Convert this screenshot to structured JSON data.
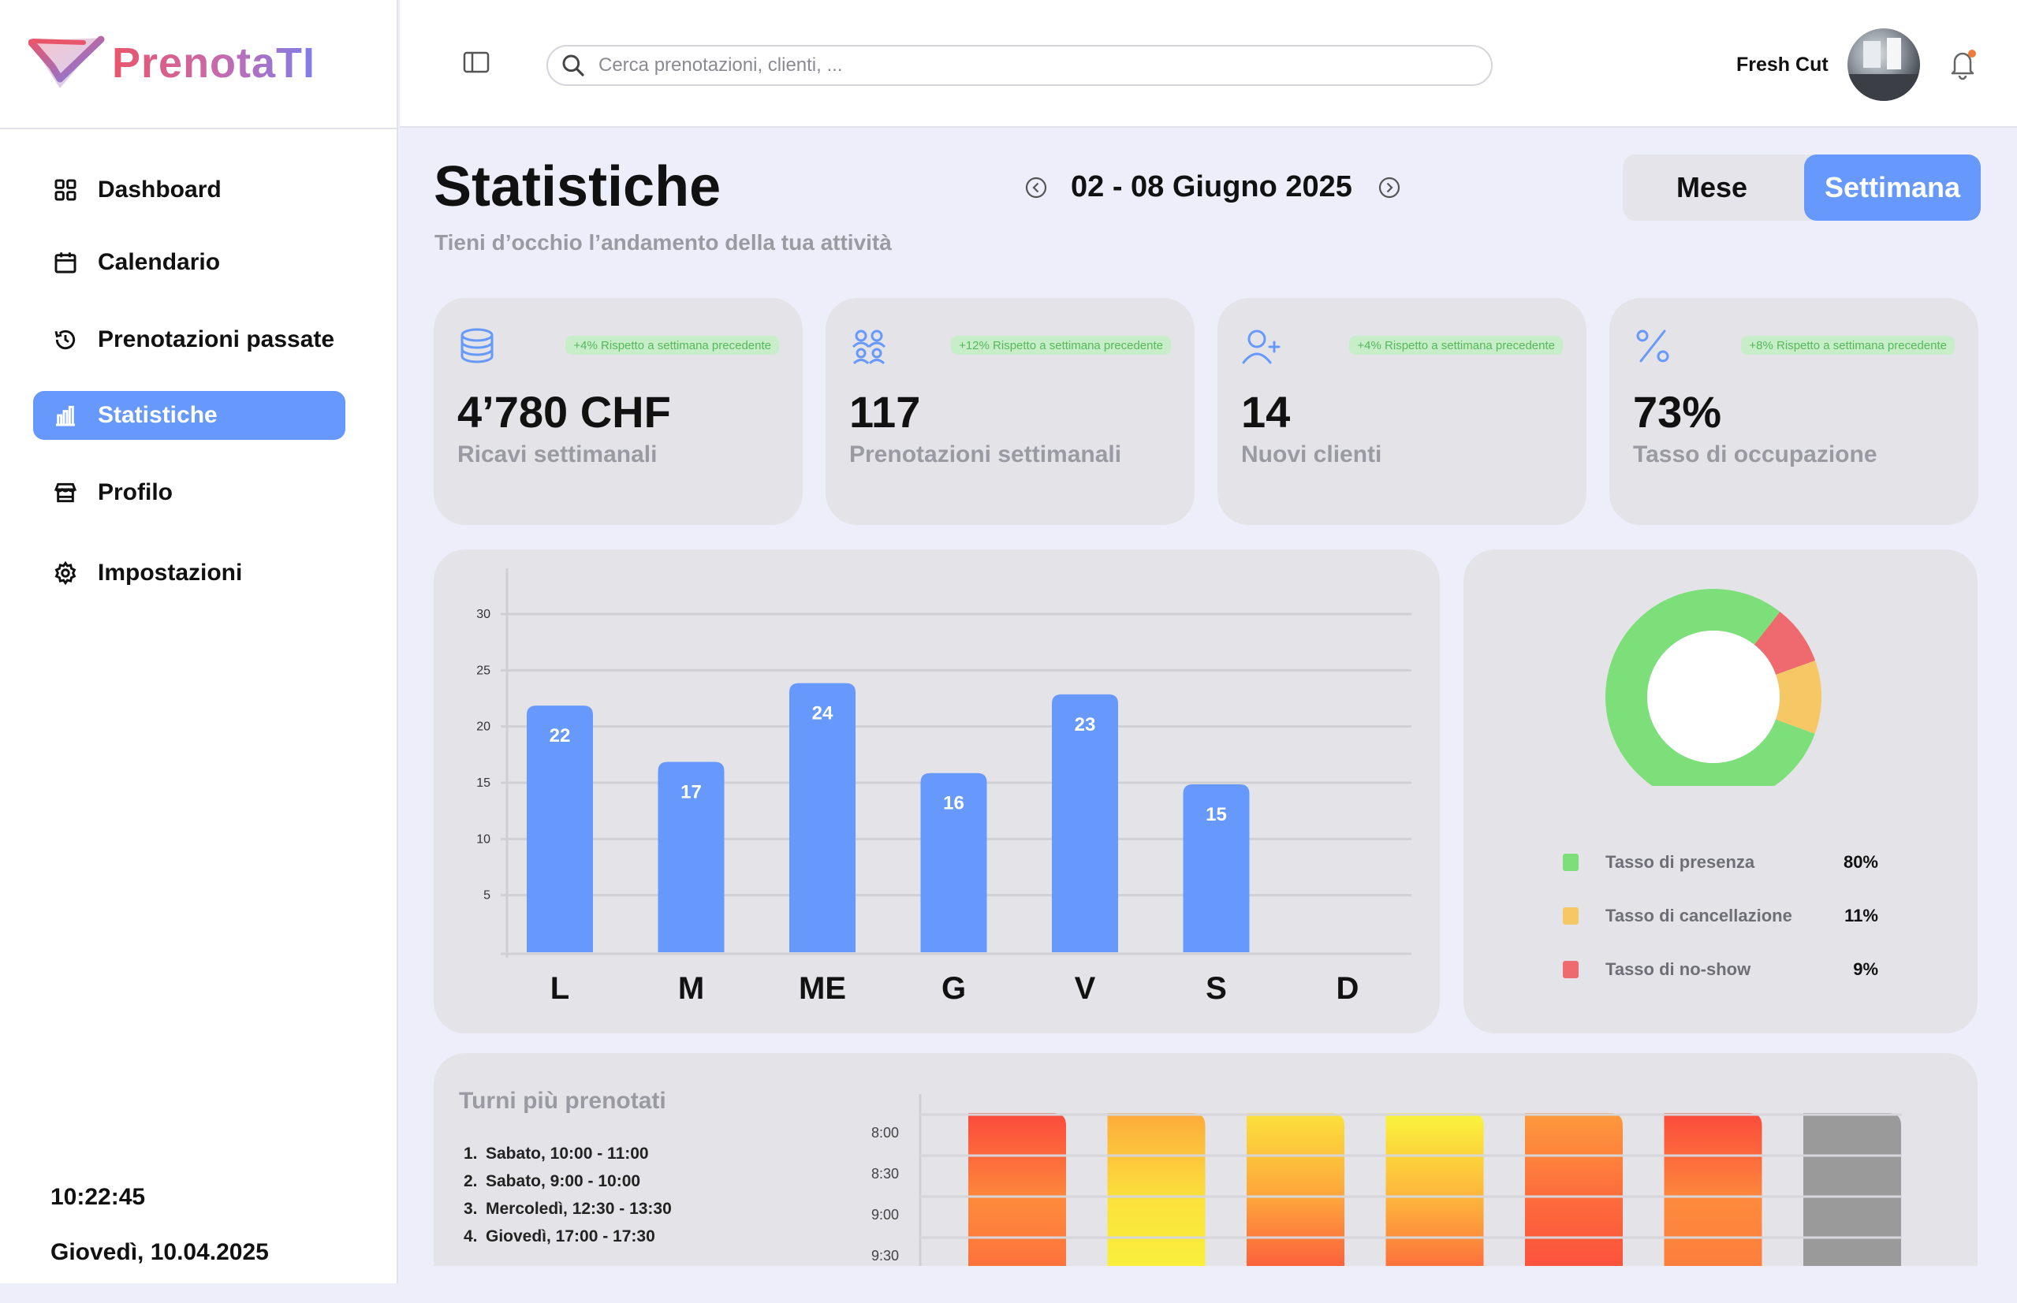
{
  "app": {
    "name": "PrenotaTI"
  },
  "topbar": {
    "search_placeholder": "Cerca prenotazioni, clienti, ...",
    "user_name": "Fresh Cut"
  },
  "sidebar": {
    "items": [
      {
        "label": "Dashboard",
        "icon": "grid-icon"
      },
      {
        "label": "Calendario",
        "icon": "calendar-icon"
      },
      {
        "label": "Prenotazioni passate",
        "icon": "history-icon"
      },
      {
        "label": "Statistiche",
        "icon": "bar-chart-icon",
        "active": true
      },
      {
        "label": "Profilo",
        "icon": "store-icon"
      },
      {
        "label": "Impostazioni",
        "icon": "gear-icon"
      }
    ],
    "time": "10:22:45",
    "date": "Giovedì, 10.04.2025"
  },
  "header": {
    "title": "Statistiche",
    "subtitle": "Tieni d’occhio l’andamento della tua attività",
    "range": "02 - 08 Giugno 2025",
    "toggle": {
      "month": "Mese",
      "week": "Settimana",
      "selected": "week"
    }
  },
  "stats": [
    {
      "icon": "database-icon",
      "badge": "+4% Rispetto a settimana precedente",
      "value": "4’780 CHF",
      "label": "Ricavi settimanali"
    },
    {
      "icon": "users-group-icon",
      "badge": "+12% Rispetto a settimana precedente",
      "value": "117",
      "label": "Prenotazioni settimanali"
    },
    {
      "icon": "user-plus-icon",
      "badge": "+4% Rispetto a settimana precedente",
      "value": "14",
      "label": "Nuovi clienti"
    },
    {
      "icon": "percent-icon",
      "badge": "+8% Rispetto a settimana precedente",
      "value": "73%",
      "label": "Tasso di occupazione"
    }
  ],
  "colors": {
    "accent": "#6699fb",
    "bar": "#6699fb",
    "presence": "#7ddf7a",
    "cancel": "#f6c765",
    "noshow": "#ee6a6e",
    "badge_text": "#55b85b"
  },
  "chart_data": [
    {
      "type": "bar",
      "categories": [
        "L",
        "M",
        "ME",
        "G",
        "V",
        "S",
        "D"
      ],
      "values": [
        22,
        17,
        24,
        16,
        23,
        15,
        null
      ],
      "data_labels": [
        "22",
        "17",
        "24",
        "16",
        "23",
        "15",
        ""
      ],
      "yticks": [
        "5",
        "10",
        "15",
        "20",
        "25",
        "30"
      ],
      "ylim": [
        0,
        30
      ],
      "grid": true,
      "legend": "none"
    },
    {
      "type": "pie",
      "donut": true,
      "labels": [
        "Tasso di presenza",
        "Tasso di cancellazione",
        "Tasso di no-show"
      ],
      "values": [
        80,
        11,
        9
      ],
      "value_labels": [
        "80%",
        "11%",
        "9%"
      ],
      "legend": "bottom"
    },
    {
      "type": "heatmap",
      "title": "Turni più prenotati",
      "y_labels": [
        "8:00",
        "8:30",
        "9:00",
        "9:30"
      ],
      "columns": 7,
      "column_palettes": [
        [
          "#fb4a3c",
          "#fd8a3c",
          "#fd6a3c"
        ],
        [
          "#fdab3c",
          "#fbe23c",
          "#f9f43c"
        ],
        [
          "#fbe23c",
          "#fda23c",
          "#fb4a3c"
        ],
        [
          "#f9f43c",
          "#fdb23c",
          "#fb5a3c"
        ],
        [
          "#fd9a3c",
          "#fd6a3c",
          "#fb4a3c"
        ],
        [
          "#fb4a3c",
          "#fd8a3c",
          "#fd7a3c"
        ],
        [
          "#9a9a9a",
          "#9a9a9a",
          "#9a9a9a"
        ]
      ]
    }
  ],
  "top_shifts": {
    "title": "Turni più prenotati",
    "items": [
      {
        "num": "1.",
        "text": "Sabato, 10:00 - 11:00"
      },
      {
        "num": "2.",
        "text": "Sabato, 9:00 - 10:00"
      },
      {
        "num": "3.",
        "text": "Mercoledì, 12:30 - 13:30"
      },
      {
        "num": "4.",
        "text": "Giovedì, 17:00  - 17:30"
      }
    ]
  }
}
